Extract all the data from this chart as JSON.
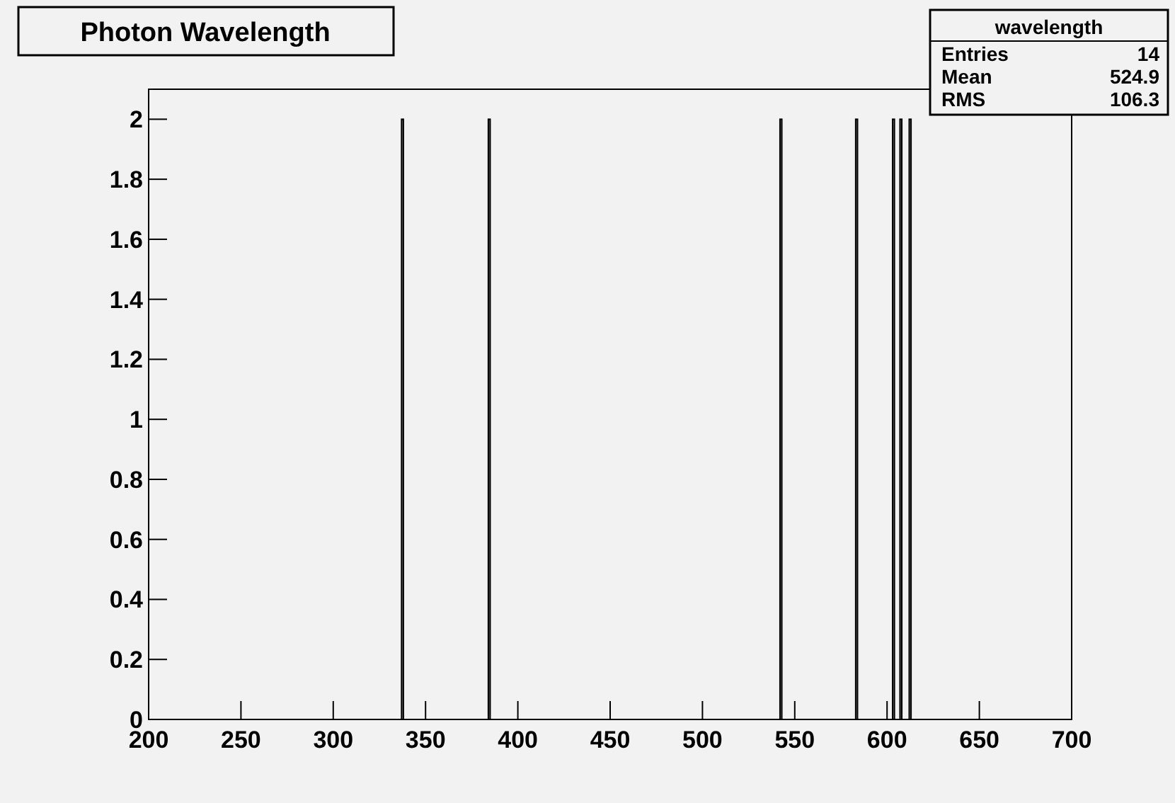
{
  "chart_data": {
    "type": "histogram",
    "title": "Photon Wavelength",
    "bins": [
      337,
      338,
      384,
      385,
      542,
      543,
      583,
      584,
      603,
      604,
      607,
      608,
      612,
      613
    ],
    "values": [
      2,
      0,
      2,
      0,
      2,
      0,
      2,
      0,
      2,
      0,
      2,
      0,
      2
    ],
    "color": "#000000",
    "xlim": [
      200,
      700
    ],
    "xticks": [
      200,
      250,
      300,
      350,
      400,
      450,
      500,
      550,
      600,
      650,
      700
    ],
    "ylim": [
      0,
      2.1
    ],
    "yticks": [
      0,
      0.2,
      0.4,
      0.6,
      0.8,
      1,
      1.2,
      1.4,
      1.6,
      1.8,
      2
    ],
    "annotations": [
      "wavelength",
      "Entries",
      "14",
      "Mean",
      "524.9",
      "RMS",
      "106.3"
    ],
    "grid": false
  }
}
